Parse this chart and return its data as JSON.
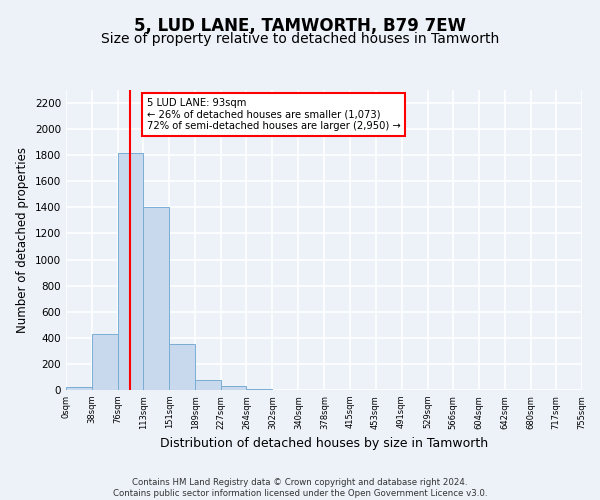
{
  "title": "5, LUD LANE, TAMWORTH, B79 7EW",
  "subtitle": "Size of property relative to detached houses in Tamworth",
  "xlabel": "Distribution of detached houses by size in Tamworth",
  "ylabel": "Number of detached properties",
  "bin_edges": [
    0,
    38,
    76,
    113,
    151,
    189,
    227,
    264,
    302,
    340,
    378,
    415,
    453,
    491,
    529,
    566,
    604,
    642,
    680,
    717,
    755
  ],
  "bar_heights": [
    20,
    430,
    1820,
    1400,
    350,
    80,
    30,
    5,
    0,
    0,
    0,
    0,
    0,
    0,
    0,
    0,
    0,
    0,
    0,
    0
  ],
  "bar_color": "#c8d9ee",
  "bar_edge_color": "#7aadd4",
  "ylim": [
    0,
    2300
  ],
  "yticks": [
    0,
    200,
    400,
    600,
    800,
    1000,
    1200,
    1400,
    1600,
    1800,
    2000,
    2200
  ],
  "property_value": 93,
  "red_line_x": 93,
  "annotation_line1": "5 LUD LANE: 93sqm",
  "annotation_line2": "← 26% of detached houses are smaller (1,073)",
  "annotation_line3": "72% of semi-detached houses are larger (2,950) →",
  "footer_line1": "Contains HM Land Registry data © Crown copyright and database right 2024.",
  "footer_line2": "Contains public sector information licensed under the Open Government Licence v3.0.",
  "background_color": "#edf2f9",
  "grid_color": "#ffffff",
  "title_fontsize": 12,
  "subtitle_fontsize": 10,
  "tick_labels": [
    "0sqm",
    "38sqm",
    "76sqm",
    "113sqm",
    "151sqm",
    "189sqm",
    "227sqm",
    "264sqm",
    "302sqm",
    "340sqm",
    "378sqm",
    "415sqm",
    "453sqm",
    "491sqm",
    "529sqm",
    "566sqm",
    "604sqm",
    "642sqm",
    "680sqm",
    "717sqm",
    "755sqm"
  ]
}
